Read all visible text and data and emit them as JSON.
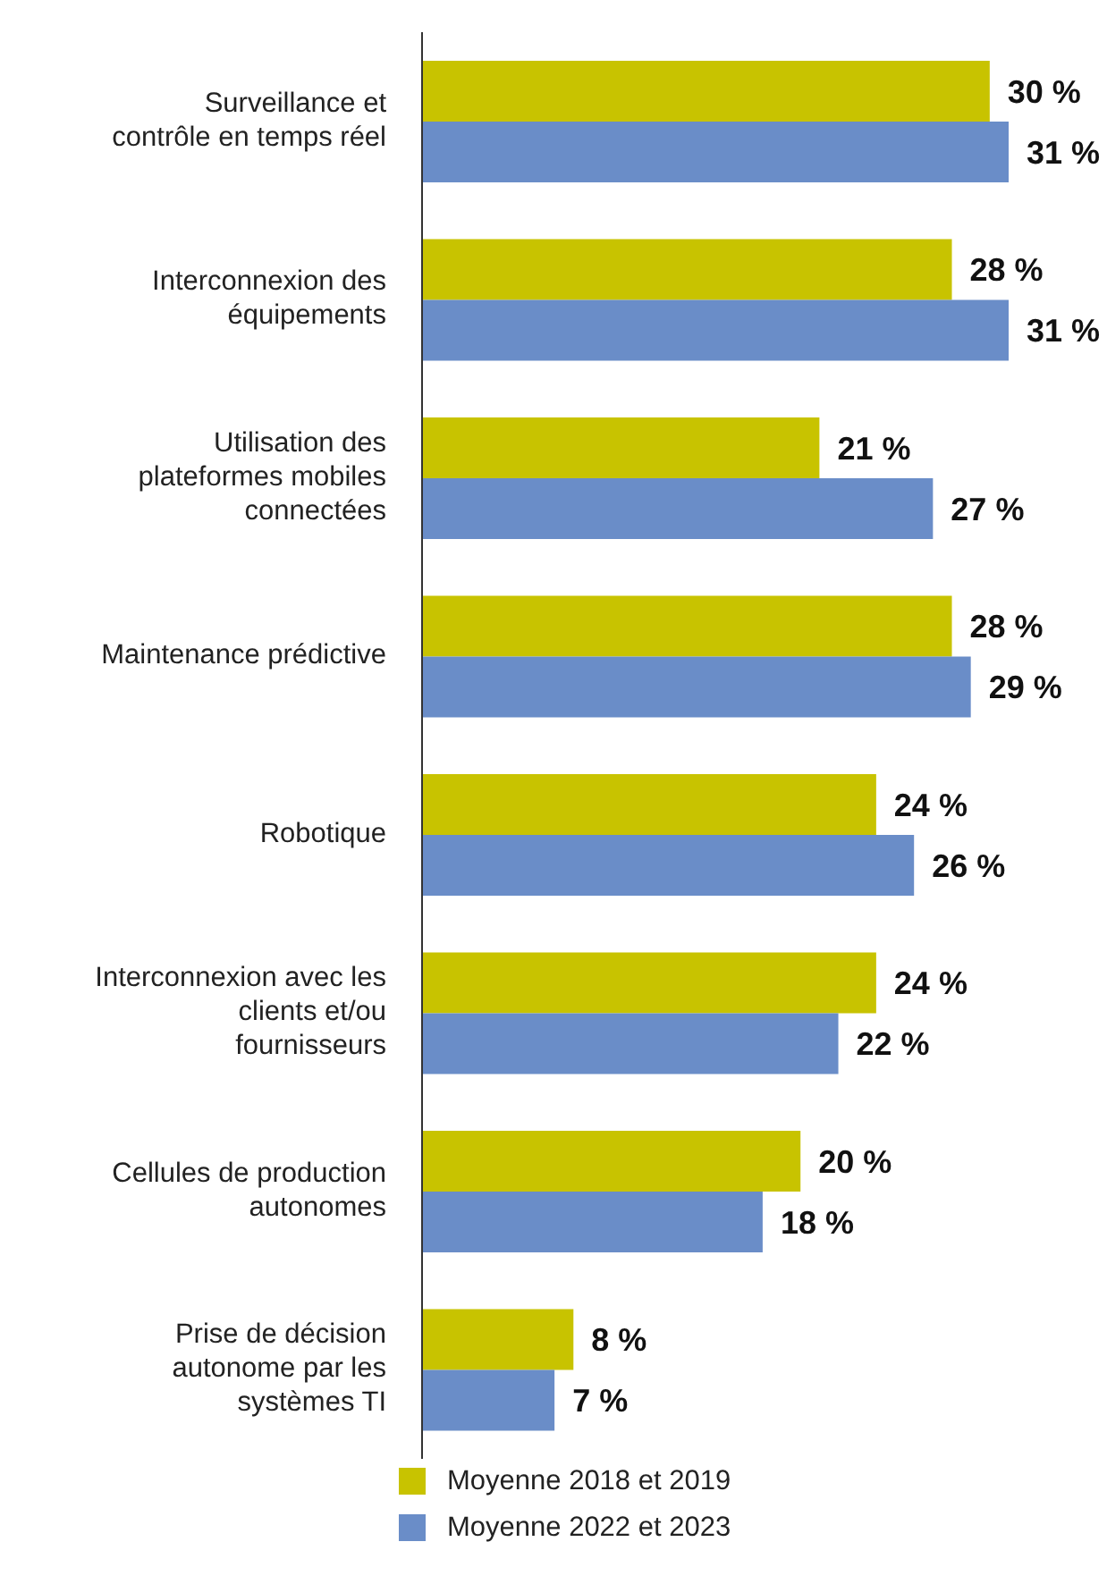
{
  "chart_data": {
    "type": "bar",
    "orientation": "horizontal",
    "categories": [
      "Surveillance et contrôle en temps réel",
      "Interconnexion des équipements",
      "Utilisation des plateformes mobiles connectées",
      "Maintenance prédictive",
      "Robotique",
      "Interconnexion avec les clients et/ou fournisseurs",
      "Cellules de production autonomes",
      "Prise de décision autonome par les systèmes TI"
    ],
    "series": [
      {
        "name": "Moyenne 2018 et 2019",
        "color": "#c8c300",
        "values": [
          30,
          28,
          21,
          28,
          24,
          24,
          20,
          8
        ],
        "value_labels": [
          "30 %",
          "28 %",
          "21 %",
          "28 %",
          "24 %",
          "24 %",
          "20 %",
          "8 %"
        ]
      },
      {
        "name": "Moyenne 2022 et 2023",
        "color": "#6a8dc8",
        "values": [
          31,
          31,
          27,
          29,
          26,
          22,
          18,
          7
        ],
        "value_labels": [
          "31 %",
          "31 %",
          "27 %",
          "29 %",
          "26 %",
          "22 %",
          "18 %",
          "7 %"
        ]
      }
    ],
    "tick_labels": "y",
    "legend": "bottom",
    "grid": false
  }
}
